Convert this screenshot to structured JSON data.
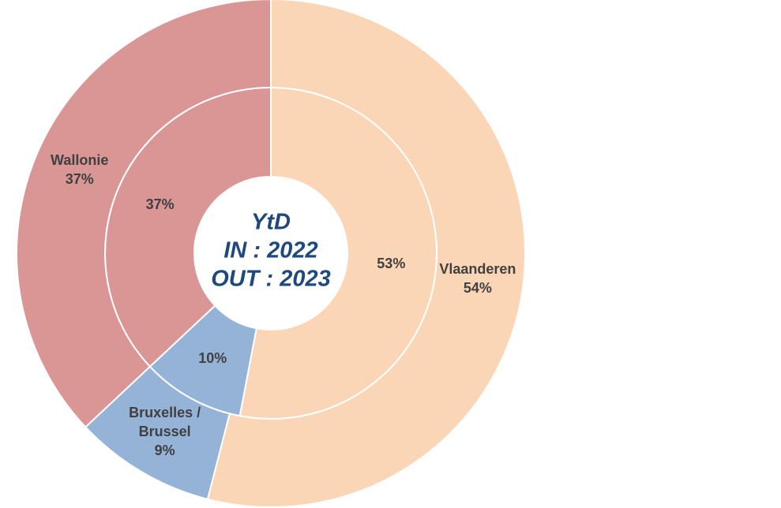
{
  "chart_data": {
    "type": "donut",
    "center_text": [
      "YtD",
      "IN : 2022",
      "OUT : 2023"
    ],
    "categories": [
      "Vlaanderen",
      "Bruxelles / Brussel",
      "Wallonie"
    ],
    "colors": [
      "#fad5b6",
      "#95b3d7",
      "#d99694"
    ],
    "series": [
      {
        "values": [
          53,
          10,
          37
        ],
        "value_labels": [
          "53%",
          "10%",
          "37%"
        ]
      },
      {
        "values": [
          54,
          9,
          37
        ],
        "value_labels": [
          "54%",
          "9%",
          "37%"
        ]
      }
    ]
  }
}
